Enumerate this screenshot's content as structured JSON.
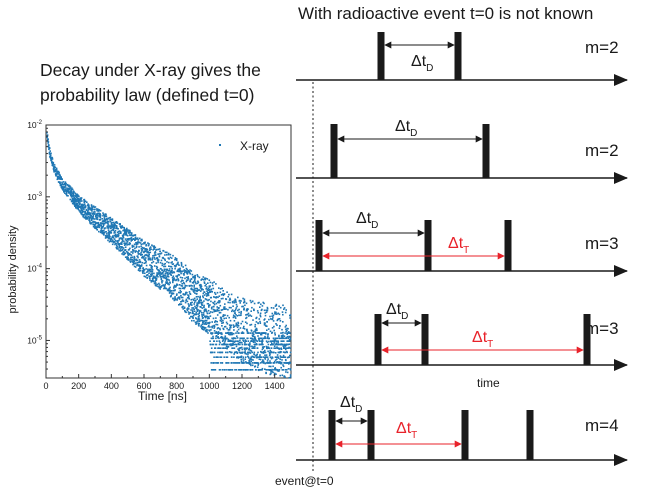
{
  "header": {
    "title": "With radioactive event t=0 is not known"
  },
  "left_title": {
    "line1": "Decay under X-ray gives the",
    "line2": "probability law (defined t=0)"
  },
  "chart_data": {
    "type": "scatter",
    "title": "",
    "xlabel": "Time [ns]",
    "ylabel": "probability density",
    "xlim": [
      0,
      1500
    ],
    "ylim": [
      3e-06,
      0.01
    ],
    "yscale": "log",
    "x_ticks": [
      0,
      200,
      400,
      600,
      800,
      1000,
      1200,
      1400
    ],
    "y_ticks": [
      {
        "value": 0.01,
        "base": "10",
        "exp": "-2"
      },
      {
        "value": 0.001,
        "base": "10",
        "exp": "-3"
      },
      {
        "value": 0.0001,
        "base": "10",
        "exp": "-4"
      },
      {
        "value": 1e-05,
        "base": "10",
        "exp": "-5"
      }
    ],
    "legend": {
      "placement": "top-right",
      "entry": "X-ray"
    },
    "grid": false,
    "series": [
      {
        "name": "X-ray",
        "color": "#1f77b4",
        "x": [
          0,
          20,
          50,
          100,
          150,
          200,
          300,
          400,
          500,
          600,
          700,
          800,
          900,
          1000,
          1100,
          1200,
          1300,
          1400,
          1500
        ],
        "y": [
          0.008,
          0.004,
          0.0024,
          0.0015,
          0.0011,
          0.0008,
          0.00052,
          0.00034,
          0.00022,
          0.00014,
          0.0001,
          7e-05,
          4e-05,
          3e-05,
          2e-05,
          1.4e-05,
          1.15e-05,
          1.05e-05,
          9.5e-06
        ]
      }
    ]
  },
  "diagram": {
    "event_label": "event@t=0",
    "time_label": "time",
    "delta_label": "Δt",
    "sub_D": "D",
    "sub_T": "T",
    "rows": [
      {
        "m": "m=2"
      },
      {
        "m": "m=2"
      },
      {
        "m": "m=3"
      },
      {
        "m": "m=3"
      },
      {
        "m": "m=4"
      }
    ]
  },
  "colors": {
    "series": "#1f77b4",
    "red": "#e8222a",
    "black": "#1a1a1a"
  }
}
